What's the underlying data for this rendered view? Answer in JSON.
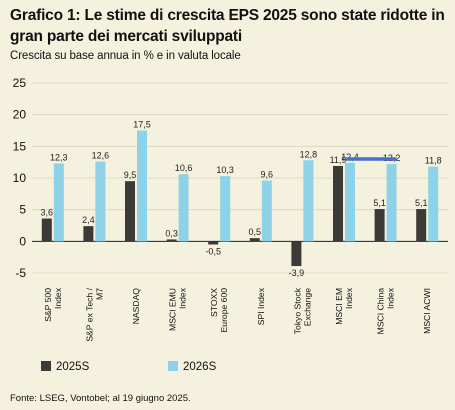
{
  "title": "Grafico 1: Le stime di crescita EPS 2025 sono state ridotte in gran parte dei mercati sviluppati",
  "subtitle": "Crescita su base annua in % e in valuta locale",
  "source": "Fonte: LSEG, Vontobel; al 19 giugno 2025.",
  "colors": {
    "series_2025": "#3b3a36",
    "series_2026": "#8fd2e8",
    "highlight_line": "#4a6fcf"
  },
  "chart_data": {
    "type": "bar",
    "title": "Grafico 1: Le stime di crescita EPS 2025 sono state ridotte in gran parte dei mercati sviluppati",
    "ylabel": "Crescita su base annua in % e in valuta locale",
    "ylim": [
      -5,
      25
    ],
    "yticks": [
      -5,
      0,
      5,
      10,
      15,
      20,
      25
    ],
    "grid": true,
    "legend": "bottom",
    "categories": [
      [
        "S&P 500",
        "Index"
      ],
      [
        "S&P ex Tech /",
        "M7"
      ],
      [
        "NASDAQ"
      ],
      [
        "MSCI EMU",
        "Index"
      ],
      [
        "STOXX",
        "Europe 600"
      ],
      [
        "SPI Index"
      ],
      [
        "Tokyo Stock",
        "Exchange"
      ],
      [
        "MSCI EM",
        "Index"
      ],
      [
        "MSCI China",
        "Index"
      ],
      [
        "MSCI ACWI"
      ]
    ],
    "series": [
      {
        "name": "2025S",
        "values": [
          3.6,
          2.4,
          9.5,
          0.3,
          -0.5,
          0.5,
          -3.9,
          11.9,
          5.1,
          5.1
        ],
        "labels": [
          "3,6",
          "2,4",
          "9,5",
          "0,3",
          "-0,5",
          "0,5",
          "-3,9",
          "11,9",
          "5,1",
          "5,1"
        ]
      },
      {
        "name": "2026S",
        "values": [
          12.3,
          12.6,
          17.5,
          10.6,
          10.3,
          9.6,
          12.8,
          12.4,
          12.2,
          11.8
        ],
        "labels": [
          "12,3",
          "12,6",
          "17,5",
          "10,6",
          "10,3",
          "9,6",
          "12,8",
          "12,4",
          "12,2",
          "11,8"
        ]
      }
    ],
    "highlight": {
      "from_index": 7,
      "to_index": 8,
      "value": 13.0
    }
  }
}
